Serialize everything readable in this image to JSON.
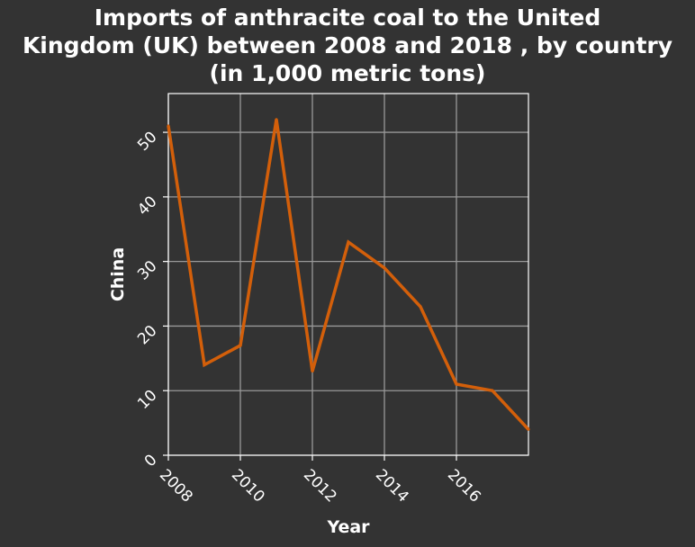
{
  "chart_data": {
    "type": "line",
    "title_lines": [
      "Imports of anthracite coal to the United",
      "Kingdom (UK) between 2008 and 2018 , by country",
      "(in 1,000 metric tons)"
    ],
    "xlabel": "Year",
    "ylabel": "China",
    "xlim": [
      2008,
      2018
    ],
    "ylim": [
      0,
      56
    ],
    "x_ticks": [
      2008,
      2010,
      2012,
      2014,
      2016
    ],
    "y_ticks": [
      0,
      10,
      20,
      30,
      40,
      50
    ],
    "grid": true,
    "series": [
      {
        "x": [
          2008,
          2009,
          2010,
          2011,
          2012,
          2013,
          2014,
          2015,
          2016,
          2017,
          2018
        ],
        "values": [
          51,
          14,
          17,
          52,
          13,
          33,
          29,
          23,
          11,
          10,
          4
        ]
      }
    ],
    "colors": {
      "background": "#333333",
      "plot_border": "#ffffff",
      "grid": "#999999",
      "line": "#d35f0a",
      "text": "#ffffff"
    }
  }
}
